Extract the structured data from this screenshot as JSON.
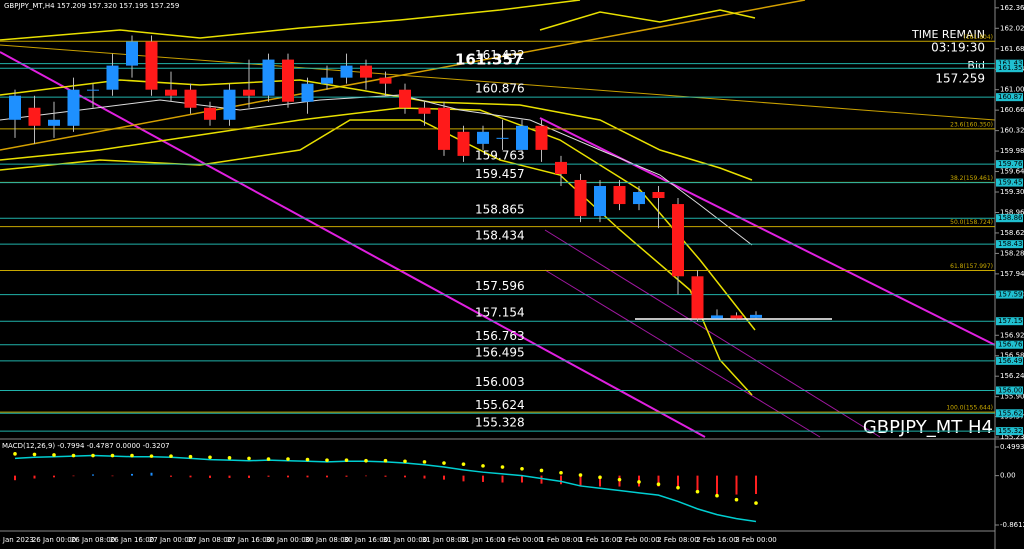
{
  "chart_data": [
    {
      "type": "candlestick",
      "title": "GBPJPY_MT,H4  157.209 157.320 157.195 157.259",
      "symbol_label": "GBPJPY_MT H4",
      "time_remain_label": "TIME REMAIN",
      "time_remain": "03:19:30",
      "bid_label": "Bid",
      "bid": 157.259,
      "categories": [
        "5 Jan 2023",
        null,
        "26 Jan 00:00",
        null,
        "26 Jan 08:00",
        null,
        "26 Jan 16:00",
        null,
        "27 Jan 00:00",
        null,
        "27 Jan 08:00",
        null,
        "27 Jan 16:00",
        null,
        "30 Jan 00:00",
        null,
        "30 Jan 08:00",
        null,
        "30 Jan 16:00",
        null,
        "31 Jan 00:00",
        null,
        "31 Jan 08:00",
        null,
        "31 Jan 16:00",
        null,
        "1 Feb 00:00",
        null,
        "1 Feb 08:00",
        null,
        "1 Feb 16:00",
        null,
        "2 Feb 00:00",
        null,
        "2 Feb 08:00",
        null,
        "2 Feb 16:00",
        null,
        "3 Feb 00:00"
      ],
      "open": [
        160.5,
        160.7,
        160.4,
        160.4,
        161.0,
        161.0,
        161.4,
        161.8,
        161.0,
        161.0,
        160.7,
        160.5,
        161.0,
        160.9,
        161.5,
        160.8,
        161.1,
        161.2,
        161.4,
        161.2,
        161.0,
        160.7,
        160.7,
        160.3,
        160.1,
        160.2,
        160.0,
        160.4,
        159.8,
        159.5,
        158.9,
        159.4,
        159.1,
        159.3,
        159.1,
        157.9,
        157.2,
        157.25,
        157.209
      ],
      "high": [
        161.0,
        160.9,
        160.8,
        161.2,
        161.1,
        161.6,
        161.9,
        161.9,
        161.3,
        161.1,
        160.8,
        161.1,
        161.5,
        161.6,
        161.6,
        161.2,
        161.4,
        161.6,
        161.5,
        161.3,
        161.1,
        160.8,
        160.8,
        160.4,
        160.4,
        160.5,
        160.5,
        160.5,
        159.9,
        159.6,
        159.5,
        159.5,
        159.4,
        159.4,
        159.2,
        158.0,
        157.35,
        157.3,
        157.32
      ],
      "low": [
        160.2,
        160.1,
        160.2,
        160.3,
        160.7,
        160.9,
        161.2,
        160.9,
        160.8,
        160.6,
        160.4,
        160.4,
        160.7,
        160.8,
        160.7,
        160.6,
        161.0,
        161.1,
        161.0,
        160.9,
        160.6,
        160.4,
        159.9,
        159.8,
        160.0,
        160.0,
        159.9,
        159.8,
        159.4,
        158.8,
        158.8,
        159.0,
        159.0,
        158.7,
        157.6,
        157.15,
        157.2,
        157.18,
        157.195
      ],
      "close": [
        160.9,
        160.4,
        160.5,
        161.0,
        161.0,
        161.4,
        161.8,
        161.0,
        160.9,
        160.7,
        160.5,
        161.0,
        160.9,
        161.5,
        160.8,
        161.1,
        161.2,
        161.4,
        161.2,
        161.1,
        160.7,
        160.6,
        160.0,
        159.9,
        160.3,
        160.2,
        160.4,
        160.0,
        159.6,
        158.9,
        159.4,
        159.1,
        159.3,
        159.2,
        157.9,
        157.2,
        157.25,
        157.2,
        157.259
      ],
      "up_color": "#1e90ff",
      "down_color": "#ff1a1a",
      "ylim": [
        155.23,
        162.49
      ],
      "yticks": [
        {
          "value": 162.36,
          "label": "162.360"
        },
        {
          "value": 162.02,
          "label": "162.020"
        },
        {
          "value": 161.68,
          "label": "161.680"
        },
        {
          "value": 161.34,
          "label": "161.340"
        },
        {
          "value": 161.0,
          "label": "161.000"
        },
        {
          "value": 160.66,
          "label": "160.660"
        },
        {
          "value": 160.32,
          "label": "160.320"
        },
        {
          "value": 159.98,
          "label": "159.980"
        },
        {
          "value": 159.64,
          "label": "159.640"
        },
        {
          "value": 159.3,
          "label": "159.300"
        },
        {
          "value": 158.96,
          "label": "158.960"
        },
        {
          "value": 158.62,
          "label": "158.620"
        },
        {
          "value": 158.28,
          "label": "158.280"
        },
        {
          "value": 157.94,
          "label": "157.940"
        },
        {
          "value": 157.6,
          "label": "157.600"
        },
        {
          "value": 156.92,
          "label": "156.920"
        },
        {
          "value": 156.58,
          "label": "156.580"
        },
        {
          "value": 156.24,
          "label": "156.240"
        },
        {
          "value": 155.9,
          "label": "155.900"
        },
        {
          "value": 155.57,
          "label": "155.570"
        },
        {
          "value": 155.23,
          "label": "155.230"
        }
      ],
      "levels": [
        161.432,
        {
          "value": 161.357,
          "label": "161.357"
        },
        160.876,
        159.763,
        159.457,
        158.865,
        158.434,
        157.596,
        157.154,
        156.763,
        156.495,
        156.003,
        155.624,
        155.328
      ],
      "level_color": "#20b2aa",
      "fib_levels": [
        {
          "value": 161.804,
          "label": "(161.804)"
        },
        {
          "value": 160.35,
          "label": "23.6(160.350)"
        },
        {
          "value": 159.461,
          "label": "38.2(159.461)"
        },
        {
          "value": 158.724,
          "label": "50.0(158.724)"
        },
        {
          "value": 157.997,
          "label": "61.8(157.997)"
        },
        {
          "value": 155.644,
          "label": "100.0(155.644)"
        }
      ],
      "fib_color": "#c8a800"
    },
    {
      "type": "macd",
      "title": "MACD(12,26,9) -0.7994 -0.4787 0.0000 -0.3207",
      "ylim": [
        -0.8612,
        0.4993
      ],
      "yticks": [
        0.4993,
        {
          "value": 0,
          "label": "0.00"
        },
        -0.8612
      ],
      "histogram": [
        -0.08,
        -0.05,
        -0.03,
        -0.01,
        0.02,
        -0.01,
        0.03,
        0.05,
        -0.02,
        -0.03,
        -0.04,
        -0.04,
        -0.04,
        -0.02,
        -0.03,
        -0.03,
        -0.03,
        -0.02,
        -0.01,
        -0.02,
        -0.03,
        -0.05,
        -0.07,
        -0.1,
        -0.11,
        -0.12,
        -0.12,
        -0.14,
        -0.15,
        -0.19,
        -0.19,
        -0.19,
        -0.19,
        -0.19,
        -0.24,
        -0.3,
        -0.33,
        -0.33,
        -0.3207
      ],
      "macd": [
        0.3,
        0.32,
        0.33,
        0.34,
        0.35,
        0.34,
        0.33,
        0.33,
        0.32,
        0.3,
        0.28,
        0.27,
        0.26,
        0.27,
        0.26,
        0.25,
        0.24,
        0.25,
        0.25,
        0.24,
        0.22,
        0.19,
        0.15,
        0.1,
        0.06,
        0.03,
        0.0,
        -0.05,
        -0.1,
        -0.18,
        -0.22,
        -0.26,
        -0.3,
        -0.34,
        -0.45,
        -0.58,
        -0.68,
        -0.75,
        -0.7994
      ],
      "signal": [
        0.38,
        0.37,
        0.36,
        0.35,
        0.35,
        0.35,
        0.35,
        0.34,
        0.34,
        0.33,
        0.32,
        0.31,
        0.3,
        0.29,
        0.29,
        0.28,
        0.27,
        0.27,
        0.26,
        0.26,
        0.25,
        0.24,
        0.22,
        0.2,
        0.17,
        0.15,
        0.12,
        0.09,
        0.05,
        0.01,
        -0.03,
        -0.07,
        -0.11,
        -0.15,
        -0.21,
        -0.28,
        -0.35,
        -0.42,
        -0.4787
      ],
      "macd_color": "#00ced1",
      "signal_color": "#ffff00",
      "neg_color": "#ff2020",
      "pos_color": "#1e90ff"
    }
  ]
}
